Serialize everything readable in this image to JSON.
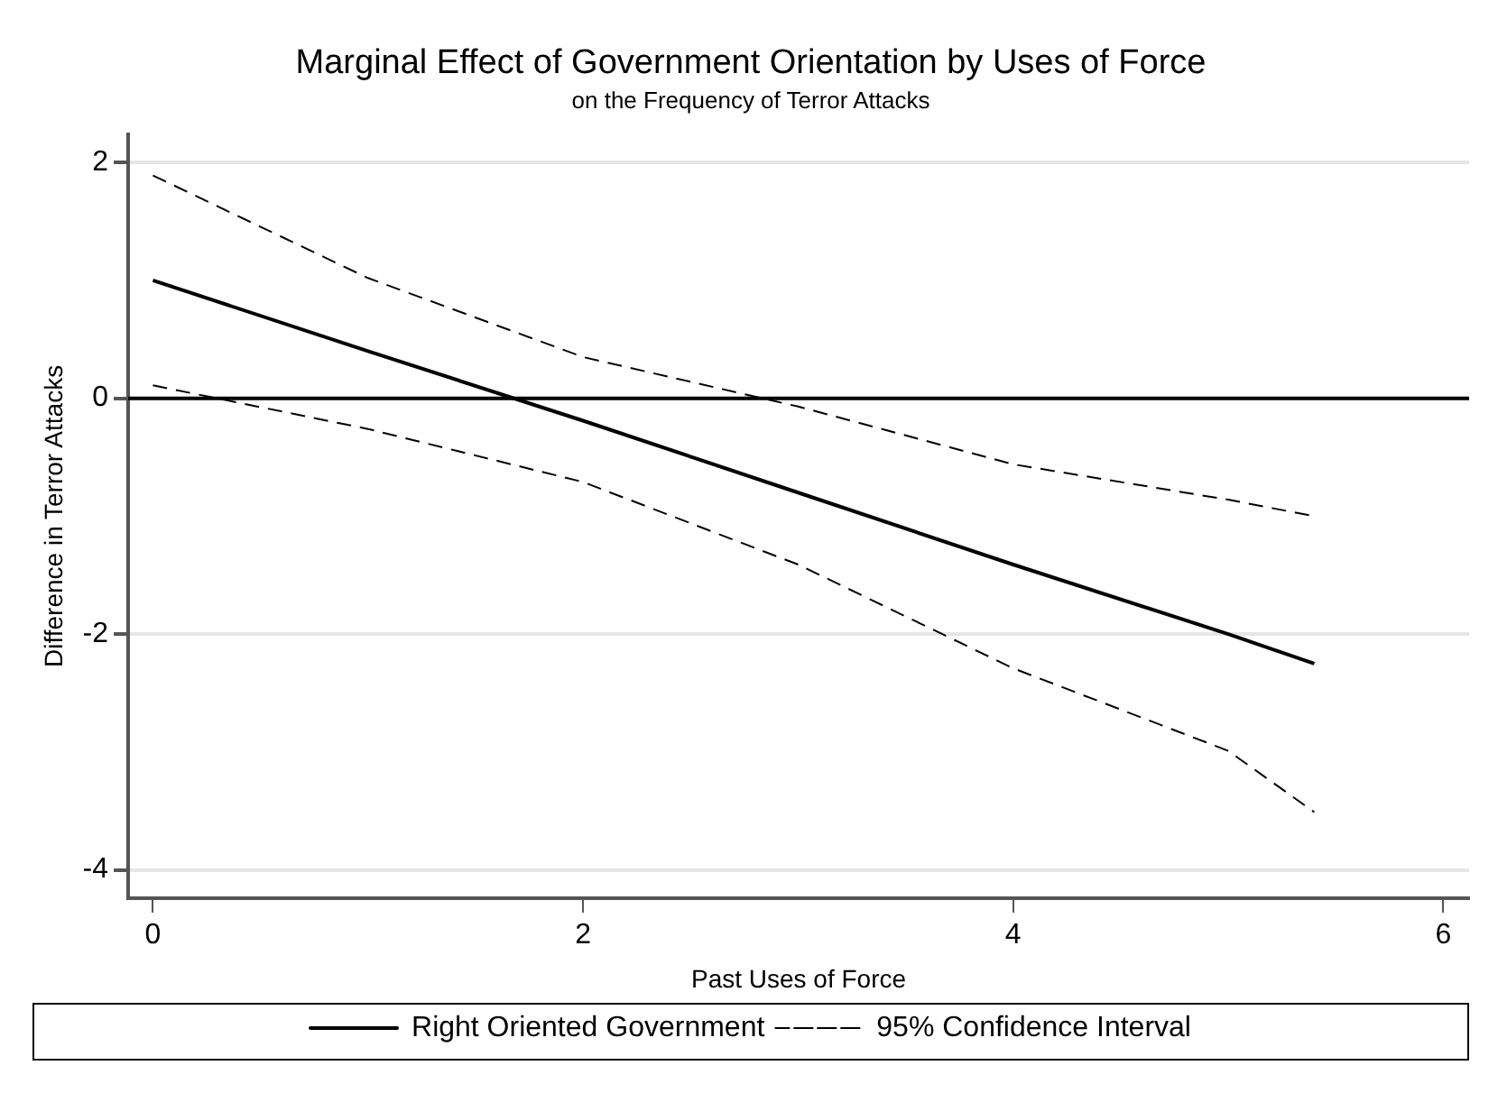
{
  "chart_data": {
    "type": "line",
    "title": "Marginal Effect of Government Orientation by Uses of Force",
    "subtitle": "on the Frequency of Terror Attacks",
    "xlabel": "Past Uses of Force",
    "ylabel": "Difference in Terror Attacks",
    "x": [
      0,
      1,
      2,
      3,
      4,
      5,
      5.4
    ],
    "series": [
      {
        "name": "Right Oriented Government",
        "color": "#000000",
        "line_style": "solid",
        "values": [
          1.0,
          0.4,
          -0.19,
          -0.8,
          -1.41,
          -2.0,
          -2.25
        ]
      },
      {
        "name": "95% Confidence Interval",
        "color": "#000000",
        "line_style": "dashed",
        "values": [
          1.89,
          1.02,
          0.35,
          -0.07,
          -0.56,
          -0.86,
          -1.0
        ]
      },
      {
        "color": "#000000",
        "line_style": "dashed",
        "values": [
          0.11,
          -0.26,
          -0.71,
          -1.41,
          -2.29,
          -2.99,
          -3.51
        ]
      }
    ],
    "xlim": [
      -0.115,
      6.12
    ],
    "xticks": [
      0,
      2,
      4,
      6
    ],
    "ylim": [
      -4.24,
      2.24
    ],
    "yticks": [
      -4,
      -2,
      0,
      2
    ],
    "ref_lines": [
      {
        "axis": "y",
        "value": 0,
        "color": "#000000",
        "line_style": "solid"
      }
    ],
    "grid": "y",
    "legend": "bottom",
    "marker": "none"
  }
}
